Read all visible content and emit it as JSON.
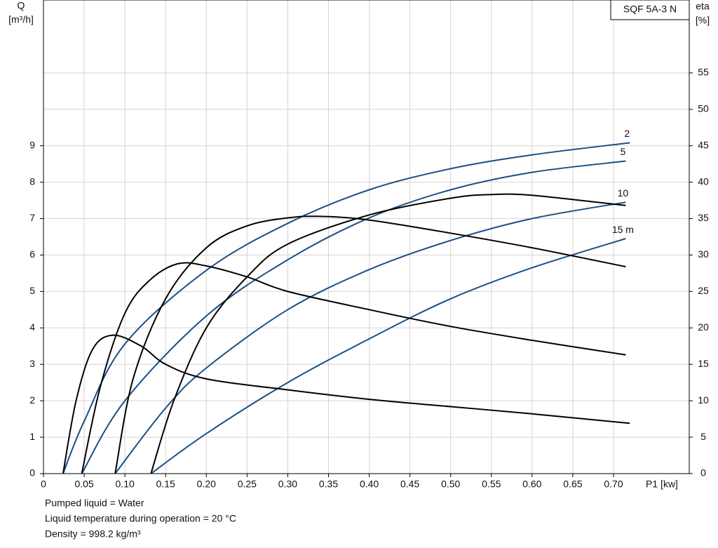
{
  "chart_data": {
    "type": "line",
    "annotation": "SQF 5A-3 N",
    "y_label": "Q",
    "y_unit": "[m³/h]",
    "y2_label": "eta",
    "y2_unit": "[%]",
    "x_label": "P1 [kw]",
    "xlim": [
      0,
      0.793
    ],
    "ylim": [
      0,
      13
    ],
    "y2lim": [
      0,
      65
    ],
    "xticks": [
      0,
      0.05,
      {
        "value": 0.1,
        "label": "0.10"
      },
      0.15,
      {
        "value": 0.2,
        "label": "0.20"
      },
      0.25,
      {
        "value": 0.3,
        "label": "0.30"
      },
      0.35,
      {
        "value": 0.4,
        "label": "0.40"
      },
      0.45,
      {
        "value": 0.5,
        "label": "0.50"
      },
      0.55,
      {
        "value": 0.6,
        "label": "0.60"
      },
      0.65,
      {
        "value": 0.7,
        "label": "0.70"
      }
    ],
    "yticks": [
      0,
      1,
      2,
      3,
      4,
      5,
      6,
      7,
      8,
      9
    ],
    "y2ticks": [
      0,
      5,
      10,
      15,
      20,
      25,
      30,
      35,
      40,
      45,
      50,
      55
    ],
    "grid": true,
    "series": [
      {
        "name": "2",
        "color": "#1a4f86",
        "x": [
          0.024,
          0.05,
          0.1,
          0.2,
          0.3,
          0.4,
          0.5,
          0.6,
          0.72
        ],
        "values": [
          0,
          1.44,
          3.56,
          5.58,
          6.87,
          7.79,
          8.37,
          8.75,
          9.08
        ]
      },
      {
        "name": "5",
        "color": "#1a4f86",
        "x": [
          0.047,
          0.1,
          0.2,
          0.3,
          0.4,
          0.5,
          0.6,
          0.715
        ],
        "values": [
          0,
          2.0,
          4.33,
          5.87,
          7.02,
          7.79,
          8.27,
          8.58
        ]
      },
      {
        "name": "10",
        "color": "#1a4f86",
        "x": [
          0.088,
          0.15,
          0.2,
          0.3,
          0.4,
          0.5,
          0.6,
          0.715
        ],
        "values": [
          0,
          1.8,
          2.9,
          4.5,
          5.6,
          6.4,
          7.0,
          7.45
        ]
      },
      {
        "name": "15 m",
        "color": "#1a4f86",
        "x": [
          0.132,
          0.2,
          0.3,
          0.4,
          0.5,
          0.6,
          0.715
        ],
        "values": [
          0,
          1.1,
          2.5,
          3.7,
          4.8,
          5.65,
          6.45
        ]
      },
      {
        "axis": "y2",
        "color": "#000000",
        "x": [
          0.024,
          0.04,
          0.06,
          0.085,
          0.12,
          0.15,
          0.2,
          0.3,
          0.4,
          0.5,
          0.6,
          0.72
        ],
        "values": [
          0,
          10,
          17,
          19,
          17.5,
          15,
          13,
          11.5,
          10.2,
          9.2,
          8.2,
          6.9
        ]
      },
      {
        "axis": "y2",
        "color": "#000000",
        "x": [
          0.047,
          0.07,
          0.1,
          0.13,
          0.165,
          0.2,
          0.25,
          0.3,
          0.4,
          0.5,
          0.6,
          0.715
        ],
        "values": [
          0,
          12,
          22,
          26.5,
          28.8,
          28.5,
          27,
          25,
          22.5,
          20.2,
          18.3,
          16.3
        ]
      },
      {
        "axis": "y2",
        "color": "#000000",
        "x": [
          0.088,
          0.11,
          0.15,
          0.2,
          0.25,
          0.3,
          0.34,
          0.4,
          0.5,
          0.6,
          0.715
        ],
        "values": [
          0,
          13,
          24,
          31,
          34,
          35.1,
          35.3,
          34.8,
          33,
          31,
          28.4
        ]
      },
      {
        "axis": "y2",
        "color": "#000000",
        "x": [
          0.132,
          0.16,
          0.2,
          0.25,
          0.3,
          0.4,
          0.5,
          0.55,
          0.6,
          0.715
        ],
        "values": [
          0,
          10,
          20,
          27,
          31.5,
          35.5,
          37.8,
          38.3,
          38.2,
          36.8
        ]
      }
    ]
  },
  "notes": [
    "Pumped liquid = Water",
    "Liquid temperature during operation = 20 °C",
    "Density = 998.2 kg/m³"
  ]
}
